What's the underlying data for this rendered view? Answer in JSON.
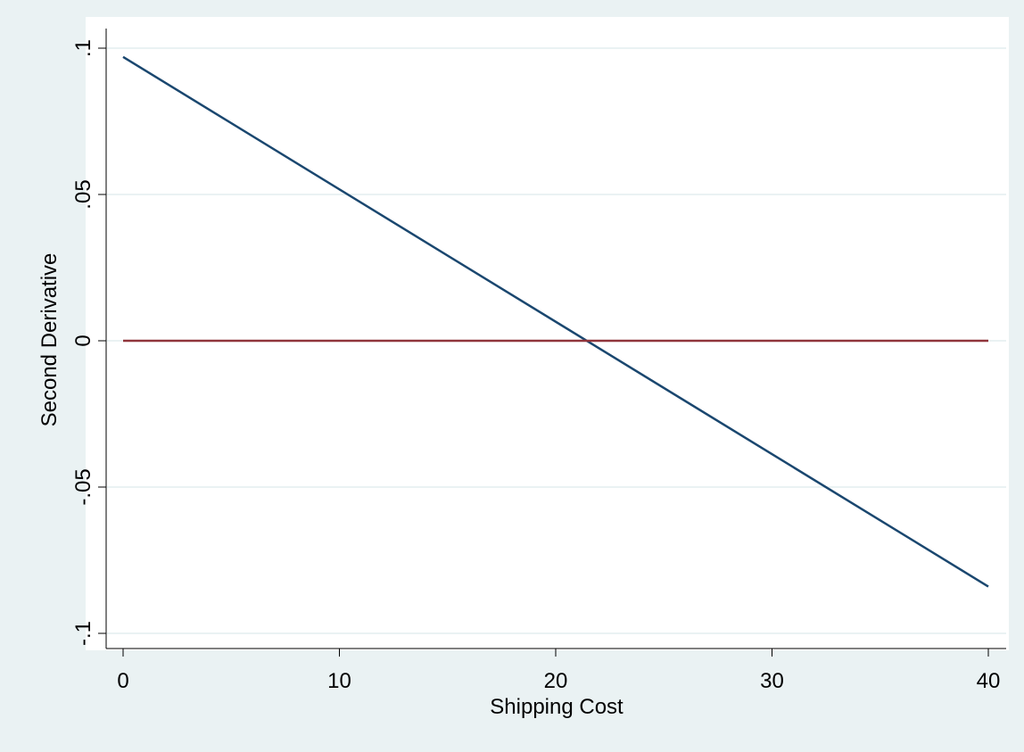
{
  "chart_data": {
    "type": "line",
    "title": "",
    "xlabel": "Shipping Cost",
    "ylabel": "Second Derivative",
    "xlim": [
      -1,
      41
    ],
    "ylim": [
      -0.105,
      0.105
    ],
    "x_ticks": [
      0,
      10,
      20,
      30,
      40
    ],
    "x_tick_labels": [
      "0",
      "10",
      "20",
      "30",
      "40"
    ],
    "y_ticks": [
      -0.1,
      -0.05,
      0,
      0.05,
      0.1
    ],
    "y_tick_labels": [
      "-.1",
      "-.05",
      "0",
      ".05",
      ".1"
    ],
    "grid": "horizontal",
    "legend": "none",
    "series": [
      {
        "x": [
          0,
          40
        ],
        "y": [
          0.097,
          -0.084
        ],
        "color": "#1a476f"
      },
      {
        "x": [
          0,
          40
        ],
        "y": [
          0,
          0
        ],
        "color": "#90353b"
      }
    ]
  },
  "colors": {
    "outer_background": "#eaf2f3",
    "plot_background": "#ffffff",
    "gridline": "#eaf2f3"
  }
}
